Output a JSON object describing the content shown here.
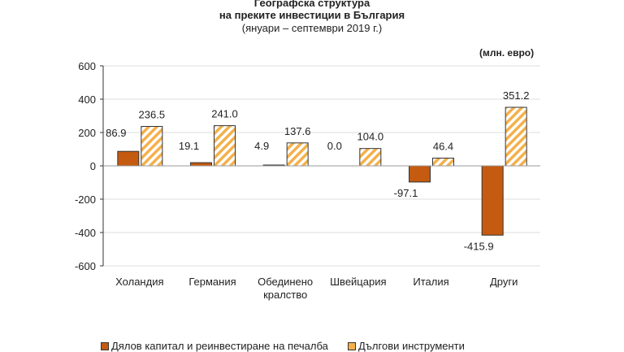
{
  "chart_data": {
    "type": "bar",
    "title": [
      "Географска структура",
      "на преките инвестиции в България"
    ],
    "subtitle": "(януари – септември 2019 г.)",
    "unit_label": "(млн. евро)",
    "categories": [
      "Холандия",
      "Германия",
      "Обединено кралство",
      "Швейцария",
      "Италия",
      "Други"
    ],
    "series": [
      {
        "name": "Дялов капитал и реинвестиране на печалба",
        "values": [
          86.9,
          19.1,
          4.9,
          0.0,
          -97.1,
          -415.9
        ],
        "labels": [
          "86.9",
          "19.1",
          "4.9",
          "0.0",
          "-97.1",
          "-415.9"
        ],
        "color": "#c55a11"
      },
      {
        "name": "Дългови инструменти",
        "values": [
          236.5,
          241.0,
          137.6,
          104.0,
          46.4,
          351.2
        ],
        "labels": [
          "236.5",
          "241.0",
          "137.6",
          "104.0",
          "46.4",
          "351.2"
        ],
        "color": "#f4b04a"
      }
    ],
    "ylim": [
      -600,
      600
    ],
    "yticks": [
      600,
      400,
      200,
      0,
      -200,
      -400,
      -600
    ],
    "ytick_labels": [
      "600",
      "400",
      "200",
      "0",
      "-200",
      "-400",
      "-600"
    ],
    "grid": true,
    "legend_placement": "bottom"
  }
}
